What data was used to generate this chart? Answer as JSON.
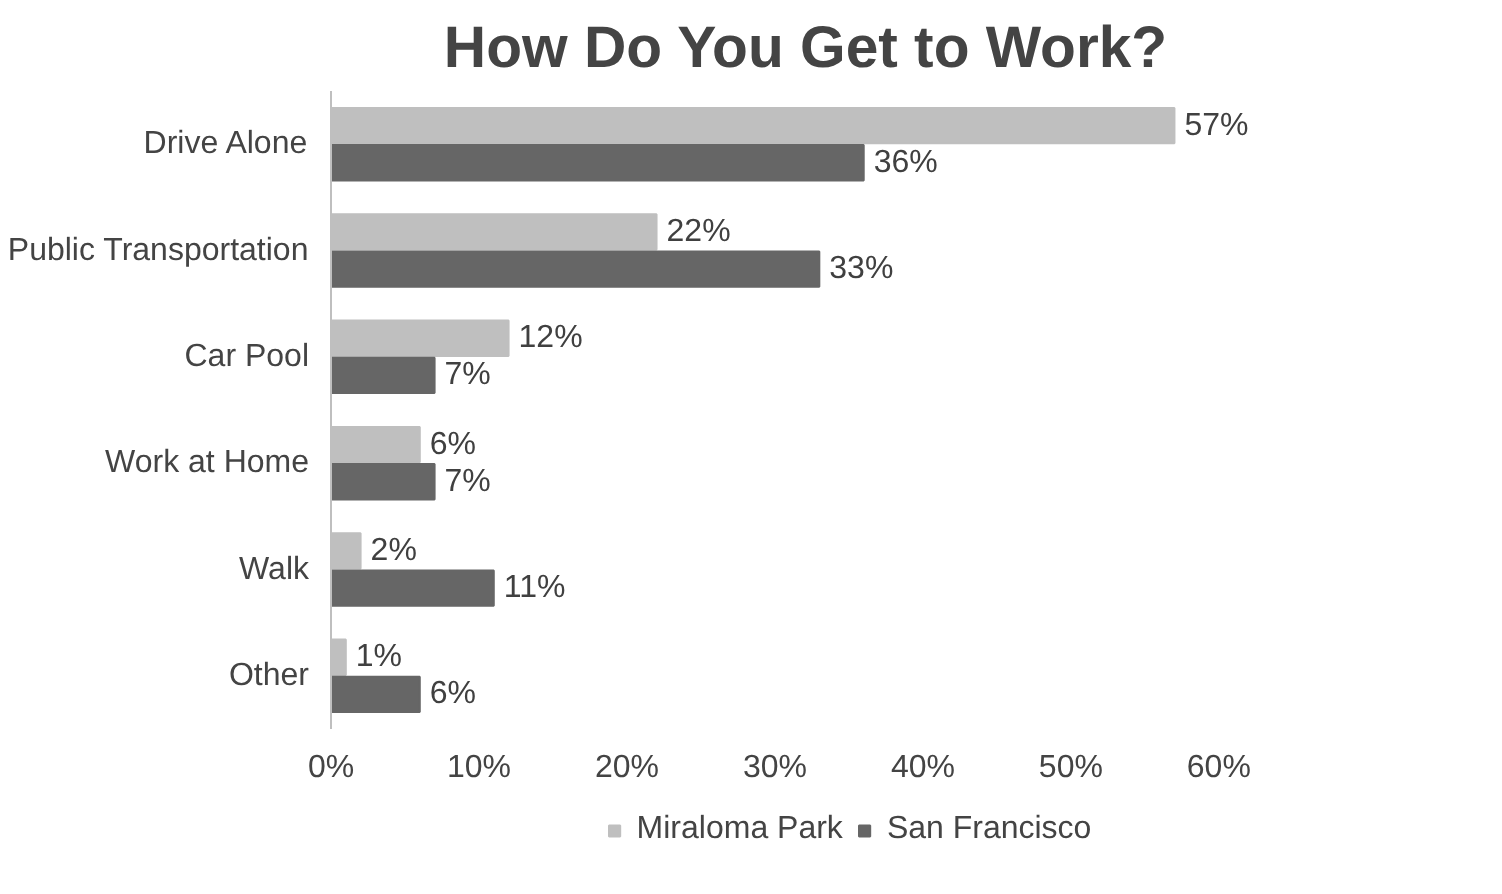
{
  "chart_data": {
    "type": "bar",
    "orientation": "horizontal",
    "title": "How Do You Get to Work?",
    "categories": [
      "Drive Alone",
      "Public Transportation",
      "Car Pool",
      "Work at Home",
      "Walk",
      "Other"
    ],
    "series": [
      {
        "name": "Miraloma Park",
        "color": "#bfbfbf",
        "values": [
          57,
          22,
          12,
          6,
          2,
          1
        ],
        "value_labels": [
          "57%",
          "22%",
          "12%",
          "6%",
          "2%",
          "1%"
        ]
      },
      {
        "name": "San Francisco",
        "color": "#666666",
        "values": [
          36,
          33,
          7,
          7,
          11,
          6
        ],
        "value_labels": [
          "36%",
          "33%",
          "7%",
          "7%",
          "11%",
          "6%"
        ]
      }
    ],
    "xlim": [
      0,
      60
    ],
    "xticks": [
      {
        "value": 0,
        "label": "0%"
      },
      {
        "value": 10,
        "label": "10%"
      },
      {
        "value": 20,
        "label": "20%"
      },
      {
        "value": 30,
        "label": "30%"
      },
      {
        "value": 40,
        "label": "40%"
      },
      {
        "value": 50,
        "label": "50%"
      },
      {
        "value": 60,
        "label": "60%"
      }
    ],
    "grid": false,
    "legend": "bottom"
  }
}
